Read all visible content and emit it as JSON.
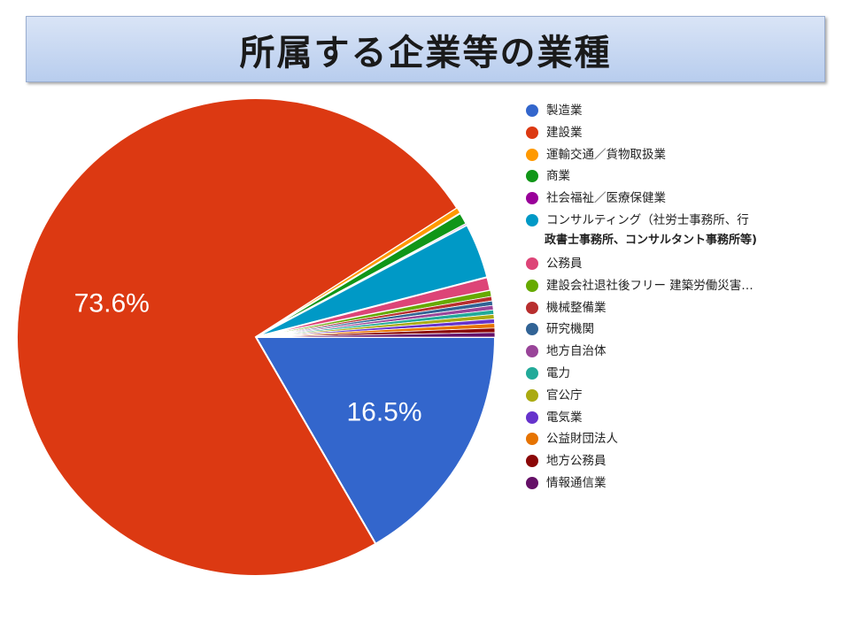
{
  "title": "所属する企業等の業種",
  "chart_data": {
    "type": "pie",
    "legend_position": "right",
    "slices": [
      {
        "label": "製造業",
        "value": 16.5,
        "color": "#3366cc",
        "data_label": "16.5%"
      },
      {
        "label": "建設業",
        "value": 73.6,
        "color": "#dc3912",
        "data_label": "73.6%"
      },
      {
        "label": "運輸交通／貨物取扱業",
        "value": 0.4,
        "color": "#ff9900"
      },
      {
        "label": "商業",
        "value": 0.8,
        "color": "#109618"
      },
      {
        "label": "社会福祉／医療保健業",
        "value": 0.1,
        "color": "#990099"
      },
      {
        "label": "コンサルティング（社労士事務所、行",
        "label_cont": "政書士事務所、コンサルタント事務所等)",
        "value": 3.7,
        "color": "#0099c6"
      },
      {
        "label": "公務員",
        "value": 0.9,
        "color": "#dd4477"
      },
      {
        "label": "建設会社退社後フリー 建築労働災害…",
        "value": 0.4,
        "color": "#66aa00"
      },
      {
        "label": "機械整備業",
        "value": 0.3,
        "color": "#b82e2e"
      },
      {
        "label": "研究機関",
        "value": 0.3,
        "color": "#316395"
      },
      {
        "label": "地方自治体",
        "value": 0.3,
        "color": "#994499"
      },
      {
        "label": "電力",
        "value": 0.3,
        "color": "#22aa99"
      },
      {
        "label": "官公庁",
        "value": 0.3,
        "color": "#aaaa11"
      },
      {
        "label": "電気業",
        "value": 0.3,
        "color": "#6633cc"
      },
      {
        "label": "公益財団法人",
        "value": 0.3,
        "color": "#e67300"
      },
      {
        "label": "地方公務員",
        "value": 0.3,
        "color": "#8b0707"
      },
      {
        "label": "情報通信業",
        "value": 0.3,
        "color": "#651067"
      }
    ]
  }
}
